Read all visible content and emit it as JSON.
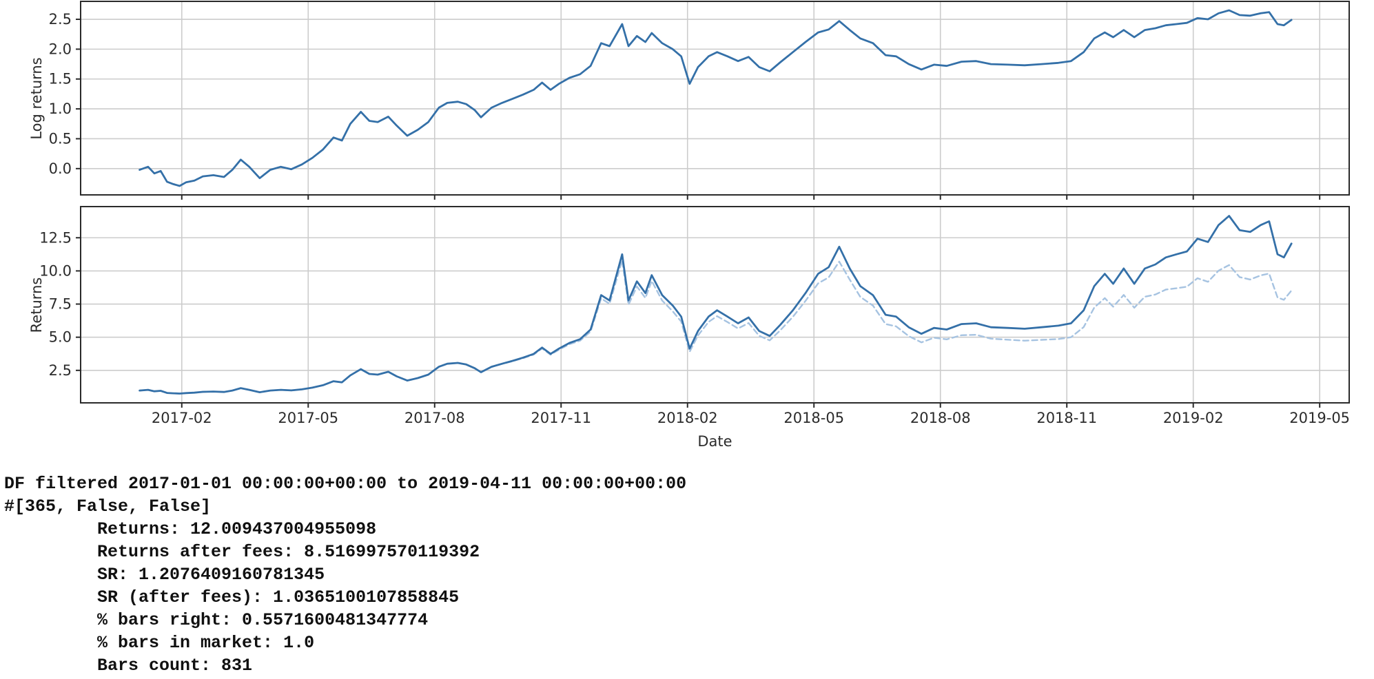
{
  "figure": {
    "xlabel": "Date",
    "x_range": [
      -1.4,
      28.7
    ],
    "x_unit": "months since 2017-01-01",
    "x_ticks": {
      "positions": [
        1,
        4,
        7,
        10,
        13,
        16,
        19,
        22,
        25,
        28
      ],
      "labels": [
        "2017-02",
        "2017-05",
        "2017-08",
        "2017-11",
        "2018-02",
        "2018-05",
        "2018-08",
        "2018-11",
        "2019-02",
        "2019-05"
      ]
    },
    "colors": {
      "line_main": "#3470a8",
      "line_after_fees": "#a6c3e1",
      "grid": "#cccccc",
      "spine": "#2a2a2a",
      "tick_text": "#2b2b2b"
    }
  },
  "chart_data": [
    {
      "type": "line",
      "title": "",
      "xlabel": "",
      "ylabel": "Log returns",
      "grid": true,
      "legend": "none",
      "ylim": [
        -0.44,
        2.8
      ],
      "ytick_values": [
        0.0,
        0.5,
        1.0,
        1.5,
        2.0,
        2.5
      ],
      "ytick_labels": [
        "0.0",
        "0.5",
        "1.0",
        "1.5",
        "2.0",
        "2.5"
      ],
      "x": [
        0,
        0.2,
        0.35,
        0.5,
        0.65,
        0.8,
        0.95,
        1.1,
        1.3,
        1.5,
        1.75,
        2.0,
        2.2,
        2.4,
        2.6,
        2.85,
        3.1,
        3.35,
        3.6,
        3.85,
        4.1,
        4.35,
        4.6,
        4.8,
        5.0,
        5.25,
        5.45,
        5.65,
        5.9,
        6.1,
        6.35,
        6.6,
        6.85,
        7.1,
        7.3,
        7.55,
        7.75,
        7.95,
        8.1,
        8.35,
        8.6,
        8.85,
        9.1,
        9.35,
        9.55,
        9.75,
        9.95,
        10.2,
        10.45,
        10.7,
        10.95,
        11.15,
        11.45,
        11.6,
        11.8,
        12.0,
        12.15,
        12.4,
        12.65,
        12.85,
        13.05,
        13.25,
        13.5,
        13.7,
        13.95,
        14.2,
        14.45,
        14.7,
        14.95,
        15.2,
        15.5,
        15.8,
        16.1,
        16.35,
        16.6,
        16.85,
        17.1,
        17.4,
        17.7,
        17.95,
        18.25,
        18.55,
        18.85,
        19.15,
        19.5,
        19.85,
        20.2,
        20.6,
        21.0,
        21.4,
        21.8,
        22.1,
        22.4,
        22.65,
        22.9,
        23.1,
        23.35,
        23.6,
        23.85,
        24.1,
        24.35,
        24.6,
        24.85,
        25.1,
        25.35,
        25.6,
        25.85,
        26.1,
        26.35,
        26.6,
        26.8,
        27.0,
        27.15,
        27.33
      ],
      "series": [
        {
          "name": "Log returns",
          "style": "solid",
          "values": [
            -0.02,
            0.03,
            -0.08,
            -0.04,
            -0.22,
            -0.26,
            -0.29,
            -0.23,
            -0.2,
            -0.13,
            -0.11,
            -0.14,
            -0.02,
            0.15,
            0.03,
            -0.16,
            -0.02,
            0.03,
            -0.01,
            0.07,
            0.18,
            0.32,
            0.52,
            0.47,
            0.75,
            0.95,
            0.8,
            0.78,
            0.87,
            0.72,
            0.55,
            0.65,
            0.78,
            1.02,
            1.1,
            1.12,
            1.08,
            0.98,
            0.86,
            1.02,
            1.1,
            1.17,
            1.24,
            1.32,
            1.44,
            1.32,
            1.42,
            1.52,
            1.58,
            1.72,
            2.1,
            2.05,
            2.42,
            2.05,
            2.22,
            2.12,
            2.27,
            2.1,
            2.0,
            1.88,
            1.42,
            1.7,
            1.88,
            1.95,
            1.88,
            1.8,
            1.87,
            1.7,
            1.63,
            1.78,
            1.95,
            2.12,
            2.28,
            2.33,
            2.47,
            2.32,
            2.18,
            2.1,
            1.9,
            1.88,
            1.75,
            1.66,
            1.74,
            1.72,
            1.79,
            1.8,
            1.75,
            1.74,
            1.73,
            1.75,
            1.77,
            1.8,
            1.95,
            2.18,
            2.28,
            2.2,
            2.32,
            2.2,
            2.32,
            2.35,
            2.4,
            2.42,
            2.44,
            2.52,
            2.5,
            2.6,
            2.65,
            2.57,
            2.56,
            2.6,
            2.62,
            2.42,
            2.4,
            2.49
          ]
        }
      ]
    },
    {
      "type": "line",
      "title": "",
      "xlabel": "Date",
      "ylabel": "Returns",
      "grid": true,
      "legend": "none",
      "ylim": [
        0.05,
        14.85
      ],
      "ytick_values": [
        2.5,
        5.0,
        7.5,
        10.0,
        12.5
      ],
      "ytick_labels": [
        "2.5",
        "5.0",
        "7.5",
        "10.0",
        "12.5"
      ],
      "x": [
        0,
        0.2,
        0.35,
        0.5,
        0.65,
        0.8,
        0.95,
        1.1,
        1.3,
        1.5,
        1.75,
        2.0,
        2.2,
        2.4,
        2.6,
        2.85,
        3.1,
        3.35,
        3.6,
        3.85,
        4.1,
        4.35,
        4.6,
        4.8,
        5.0,
        5.25,
        5.45,
        5.65,
        5.9,
        6.1,
        6.35,
        6.6,
        6.85,
        7.1,
        7.3,
        7.55,
        7.75,
        7.95,
        8.1,
        8.35,
        8.6,
        8.85,
        9.1,
        9.35,
        9.55,
        9.75,
        9.95,
        10.2,
        10.45,
        10.7,
        10.95,
        11.15,
        11.45,
        11.6,
        11.8,
        12.0,
        12.15,
        12.4,
        12.65,
        12.85,
        13.05,
        13.25,
        13.5,
        13.7,
        13.95,
        14.2,
        14.45,
        14.7,
        14.95,
        15.2,
        15.5,
        15.8,
        16.1,
        16.35,
        16.6,
        16.85,
        17.1,
        17.4,
        17.7,
        17.95,
        18.25,
        18.55,
        18.85,
        19.15,
        19.5,
        19.85,
        20.2,
        20.6,
        21.0,
        21.4,
        21.8,
        22.1,
        22.4,
        22.65,
        22.9,
        23.1,
        23.35,
        23.6,
        23.85,
        24.1,
        24.35,
        24.6,
        24.85,
        25.1,
        25.35,
        25.6,
        25.85,
        26.1,
        26.35,
        26.6,
        26.8,
        27.0,
        27.15,
        27.33
      ],
      "series": [
        {
          "name": "Returns",
          "style": "solid",
          "values": [
            0.98,
            1.03,
            0.92,
            0.96,
            0.8,
            0.77,
            0.75,
            0.79,
            0.82,
            0.88,
            0.9,
            0.87,
            0.98,
            1.16,
            1.03,
            0.85,
            0.98,
            1.03,
            0.99,
            1.07,
            1.2,
            1.38,
            1.68,
            1.6,
            2.12,
            2.59,
            2.23,
            2.18,
            2.39,
            2.05,
            1.73,
            1.92,
            2.18,
            2.77,
            3.0,
            3.06,
            2.94,
            2.66,
            2.36,
            2.77,
            3.0,
            3.22,
            3.46,
            3.74,
            4.22,
            3.74,
            4.14,
            4.57,
            4.85,
            5.58,
            8.17,
            7.77,
            11.25,
            7.77,
            9.21,
            8.33,
            9.68,
            8.17,
            7.39,
            6.55,
            4.14,
            5.47,
            6.55,
            7.03,
            6.55,
            6.05,
            6.49,
            5.47,
            5.1,
            5.93,
            7.03,
            8.33,
            9.78,
            10.28,
            11.82,
            10.18,
            8.85,
            8.17,
            6.69,
            6.55,
            5.75,
            5.26,
            5.7,
            5.58,
            5.99,
            6.05,
            5.75,
            5.7,
            5.64,
            5.75,
            5.87,
            6.05,
            7.03,
            8.85,
            9.78,
            9.03,
            10.18,
            9.03,
            10.18,
            10.49,
            11.02,
            11.25,
            11.47,
            12.43,
            12.18,
            13.46,
            14.15,
            13.07,
            12.94,
            13.46,
            13.74,
            11.25,
            11.02,
            12.06
          ]
        },
        {
          "name": "Returns after fees",
          "style": "dashed",
          "values": [
            0.98,
            1.03,
            0.92,
            0.96,
            0.8,
            0.77,
            0.75,
            0.79,
            0.82,
            0.88,
            0.9,
            0.87,
            0.98,
            1.16,
            1.03,
            0.85,
            0.98,
            1.03,
            0.99,
            1.07,
            1.2,
            1.38,
            1.68,
            1.6,
            2.12,
            2.59,
            2.23,
            2.18,
            2.39,
            2.05,
            1.73,
            1.92,
            2.18,
            2.77,
            3.0,
            3.06,
            2.94,
            2.66,
            2.36,
            2.76,
            2.99,
            3.19,
            3.42,
            3.69,
            4.15,
            3.68,
            4.06,
            4.47,
            4.74,
            5.43,
            7.93,
            7.52,
            10.81,
            7.45,
            8.83,
            7.96,
            9.24,
            7.76,
            6.95,
            6.18,
            3.9,
            5.14,
            6.15,
            6.59,
            6.14,
            5.66,
            6.07,
            5.11,
            4.76,
            5.52,
            6.54,
            7.74,
            9.06,
            9.51,
            10.7,
            9.34,
            8.04,
            7.38,
            5.99,
            5.82,
            5.08,
            4.61,
            4.96,
            4.84,
            5.15,
            5.18,
            4.89,
            4.81,
            4.74,
            4.8,
            4.86,
            5.0,
            5.77,
            7.23,
            7.95,
            7.3,
            8.19,
            7.22,
            8.05,
            8.22,
            8.59,
            8.69,
            8.81,
            9.45,
            9.18,
            10.02,
            10.44,
            9.53,
            9.35,
            9.66,
            9.8,
            8.0,
            7.82,
            8.52
          ]
        }
      ]
    }
  ],
  "console_output": {
    "lines": [
      "DF filtered 2017-01-01 00:00:00+00:00 to 2019-04-11 00:00:00+00:00",
      "#[365, False, False]",
      "         Returns: 12.009437004955098",
      "         Returns after fees: 8.516997570119392",
      "         SR: 1.2076409160781345",
      "         SR (after fees): 1.0365100107858845",
      "         % bars right: 0.5571600481347774",
      "         % bars in market: 1.0",
      "         Bars count: 831"
    ]
  }
}
